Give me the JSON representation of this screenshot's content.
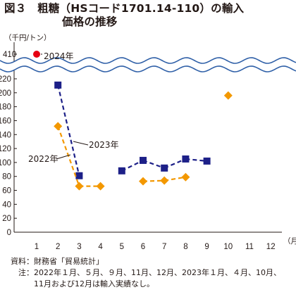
{
  "title": {
    "line1": "図３　粗糖（HSコード1701.14-110）の輸入",
    "line2": "価格の推移"
  },
  "notes": {
    "source_label": "資料：",
    "source_text": "財務省「貿易統計」",
    "note_label": "注：",
    "note_text_1": "2022年１月、５月、９月、11月、12月、2023年１月、４月、10月、",
    "note_text_2": "11月および12月は輸入実績なし。"
  },
  "chart_data": {
    "type": "line",
    "ylabel": "（千円/トン）",
    "xlabel": "（月）",
    "x_ticks": [
      "1",
      "2",
      "3",
      "4",
      "5",
      "6",
      "7",
      "8",
      "9",
      "10",
      "11",
      "12"
    ],
    "y_ticks": [
      "0",
      "20",
      "40",
      "60",
      "80",
      "100",
      "120",
      "140",
      "160",
      "180",
      "200",
      "220"
    ],
    "y_break_tick": "410",
    "ylim": [
      0,
      220
    ],
    "axis_break": true,
    "grid": false,
    "series": [
      {
        "name": "2024年",
        "color": "#e60012",
        "marker": "circle",
        "points": [
          {
            "x": 1,
            "y": 410
          }
        ]
      },
      {
        "name": "2023年",
        "color": "#1d2088",
        "marker": "square",
        "line_style": "dashed",
        "points": [
          {
            "x": 2,
            "y": 211
          },
          {
            "x": 3,
            "y": 81
          },
          {
            "x": 5,
            "y": 88
          },
          {
            "x": 6,
            "y": 103
          },
          {
            "x": 7,
            "y": 92
          },
          {
            "x": 8,
            "y": 105
          },
          {
            "x": 9,
            "y": 102
          }
        ]
      },
      {
        "name": "2022年",
        "color": "#f39800",
        "marker": "diamond",
        "line_style": "dashed",
        "points": [
          {
            "x": 2,
            "y": 152
          },
          {
            "x": 3,
            "y": 66
          },
          {
            "x": 4,
            "y": 66
          },
          {
            "x": 6,
            "y": 73
          },
          {
            "x": 7,
            "y": 74
          },
          {
            "x": 8,
            "y": 79
          },
          {
            "x": 10,
            "y": 196
          }
        ]
      }
    ]
  }
}
